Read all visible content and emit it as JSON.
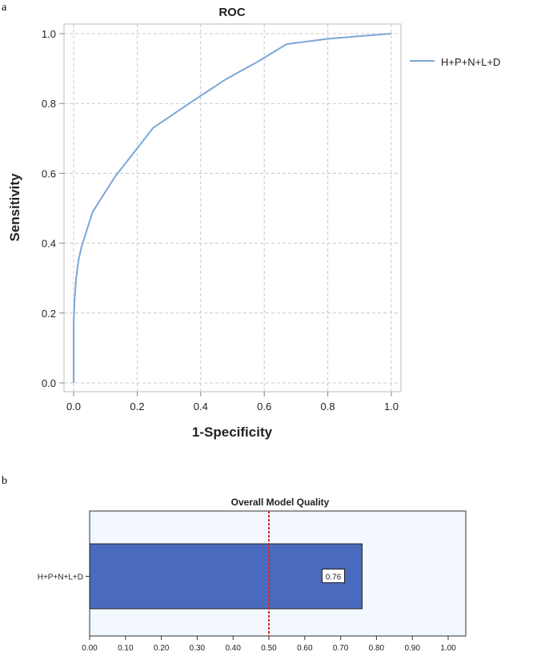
{
  "panels": {
    "a": "a",
    "b": "b"
  },
  "chart_data": [
    {
      "type": "line",
      "title": "ROC",
      "xlabel": "1-Specificity",
      "ylabel": "Sensitivity",
      "xlim": [
        0,
        1
      ],
      "ylim": [
        0,
        1
      ],
      "xticks": [
        "0.0",
        "0.2",
        "0.4",
        "0.6",
        "0.8",
        "1.0"
      ],
      "yticks": [
        "0.0",
        "0.2",
        "0.4",
        "0.6",
        "0.8",
        "1.0"
      ],
      "grid": true,
      "legend": "right",
      "series": [
        {
          "name": "H+P+N+L+D",
          "color": "#7ba7d9",
          "x": [
            0,
            0,
            0.003,
            0.008,
            0.015,
            0.025,
            0.06,
            0.13,
            0.25,
            0.38,
            0.48,
            0.58,
            0.67,
            0.8,
            0.9,
            1.0
          ],
          "y": [
            0,
            0.17,
            0.24,
            0.3,
            0.35,
            0.39,
            0.49,
            0.59,
            0.73,
            0.81,
            0.87,
            0.92,
            0.97,
            0.985,
            0.993,
            1.0
          ]
        }
      ]
    },
    {
      "type": "bar",
      "orientation": "horizontal",
      "title": "Overall Model Quality",
      "categories": [
        "H+P+N+L+D"
      ],
      "values": [
        0.76
      ],
      "value_labels": [
        "0.76"
      ],
      "xlim": [
        0,
        1
      ],
      "xticks": [
        "0.00",
        "0.10",
        "0.20",
        "0.30",
        "0.40",
        "0.50",
        "0.60",
        "0.70",
        "0.80",
        "0.90",
        "1.00"
      ],
      "reference_line": 0.5,
      "bar_color": "#4a6bbd",
      "reference_color": "#e02020",
      "background": "#f2f8fd"
    }
  ]
}
